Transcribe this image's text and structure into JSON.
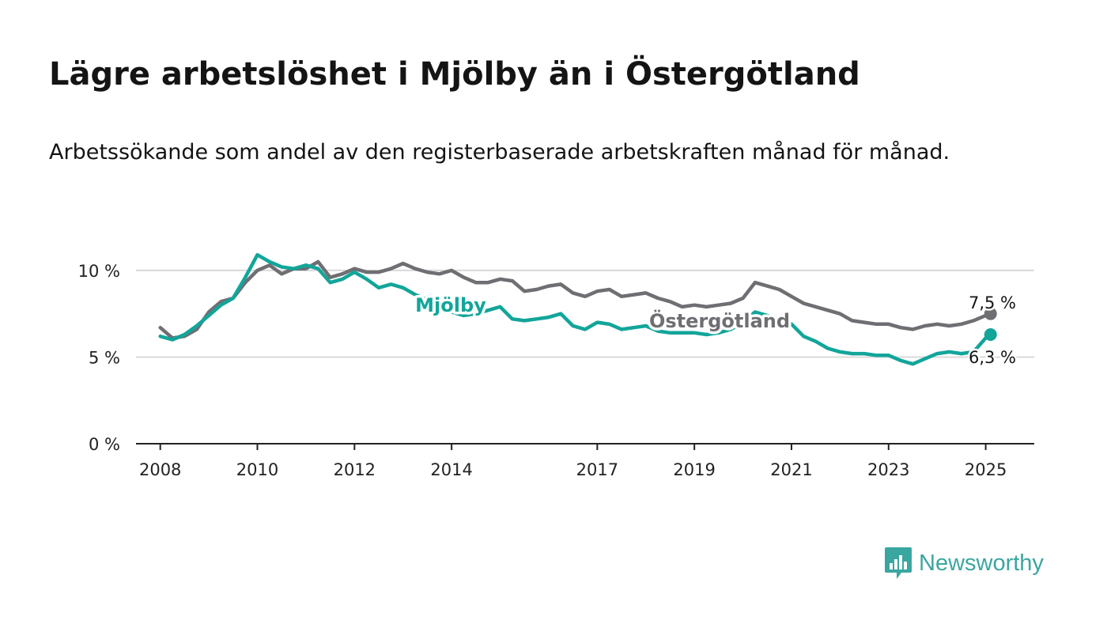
{
  "title": "Lägre arbetslöshet i Mjölby än i Östergötland",
  "subtitle": "Arbetssökande som andel av den registerbaserade arbetskraften månad för månad.",
  "brand": {
    "name": "Newsworthy",
    "icon": "bar-chart-speech-bubble-icon",
    "color": "#3aa6a0"
  },
  "chart_data": {
    "type": "line",
    "title": "Lägre arbetslöshet i Mjölby än i Östergötland",
    "xlabel": "",
    "ylabel": "",
    "x_ticks": [
      "2008",
      "2010",
      "2012",
      "2014",
      "2017",
      "2019",
      "2021",
      "2023",
      "2025"
    ],
    "y_ticks": [
      "0 %",
      "5 %",
      "10 %"
    ],
    "ylim": [
      0,
      11
    ],
    "xlim": [
      2007.5,
      2026.0
    ],
    "grid": true,
    "series": [
      {
        "name": "Östergötland",
        "color": "#6e6e73",
        "end_label": "7,5 %",
        "end_value": 7.5,
        "points": [
          [
            2008.0,
            6.7
          ],
          [
            2008.25,
            6.1
          ],
          [
            2008.5,
            6.2
          ],
          [
            2008.75,
            6.6
          ],
          [
            2009.0,
            7.6
          ],
          [
            2009.25,
            8.2
          ],
          [
            2009.5,
            8.4
          ],
          [
            2009.75,
            9.3
          ],
          [
            2010.0,
            10.0
          ],
          [
            2010.25,
            10.3
          ],
          [
            2010.5,
            9.8
          ],
          [
            2010.75,
            10.1
          ],
          [
            2011.0,
            10.1
          ],
          [
            2011.25,
            10.5
          ],
          [
            2011.5,
            9.6
          ],
          [
            2011.75,
            9.8
          ],
          [
            2012.0,
            10.1
          ],
          [
            2012.25,
            9.9
          ],
          [
            2012.5,
            9.9
          ],
          [
            2012.75,
            10.1
          ],
          [
            2013.0,
            10.4
          ],
          [
            2013.25,
            10.1
          ],
          [
            2013.5,
            9.9
          ],
          [
            2013.75,
            9.8
          ],
          [
            2014.0,
            10.0
          ],
          [
            2014.25,
            9.6
          ],
          [
            2014.5,
            9.3
          ],
          [
            2014.75,
            9.3
          ],
          [
            2015.0,
            9.5
          ],
          [
            2015.25,
            9.4
          ],
          [
            2015.5,
            8.8
          ],
          [
            2015.75,
            8.9
          ],
          [
            2016.0,
            9.1
          ],
          [
            2016.25,
            9.2
          ],
          [
            2016.5,
            8.7
          ],
          [
            2016.75,
            8.5
          ],
          [
            2017.0,
            8.8
          ],
          [
            2017.25,
            8.9
          ],
          [
            2017.5,
            8.5
          ],
          [
            2017.75,
            8.6
          ],
          [
            2018.0,
            8.7
          ],
          [
            2018.25,
            8.4
          ],
          [
            2018.5,
            8.2
          ],
          [
            2018.75,
            7.9
          ],
          [
            2019.0,
            8.0
          ],
          [
            2019.25,
            7.9
          ],
          [
            2019.5,
            8.0
          ],
          [
            2019.75,
            8.1
          ],
          [
            2020.0,
            8.4
          ],
          [
            2020.25,
            9.3
          ],
          [
            2020.5,
            9.1
          ],
          [
            2020.75,
            8.9
          ],
          [
            2021.0,
            8.5
          ],
          [
            2021.25,
            8.1
          ],
          [
            2021.5,
            7.9
          ],
          [
            2021.75,
            7.7
          ],
          [
            2022.0,
            7.5
          ],
          [
            2022.25,
            7.1
          ],
          [
            2022.5,
            7.0
          ],
          [
            2022.75,
            6.9
          ],
          [
            2023.0,
            6.9
          ],
          [
            2023.25,
            6.7
          ],
          [
            2023.5,
            6.6
          ],
          [
            2023.75,
            6.8
          ],
          [
            2024.0,
            6.9
          ],
          [
            2024.25,
            6.8
          ],
          [
            2024.5,
            6.9
          ],
          [
            2024.75,
            7.1
          ],
          [
            2025.0,
            7.4
          ],
          [
            2025.1,
            7.5
          ]
        ]
      },
      {
        "name": "Mjölby",
        "color": "#12a59a",
        "end_label": "6,3 %",
        "end_value": 6.3,
        "points": [
          [
            2008.0,
            6.2
          ],
          [
            2008.25,
            6.0
          ],
          [
            2008.5,
            6.3
          ],
          [
            2008.75,
            6.8
          ],
          [
            2009.0,
            7.4
          ],
          [
            2009.25,
            8.0
          ],
          [
            2009.5,
            8.4
          ],
          [
            2009.75,
            9.6
          ],
          [
            2010.0,
            10.9
          ],
          [
            2010.25,
            10.5
          ],
          [
            2010.5,
            10.2
          ],
          [
            2010.75,
            10.1
          ],
          [
            2011.0,
            10.3
          ],
          [
            2011.25,
            10.1
          ],
          [
            2011.5,
            9.3
          ],
          [
            2011.75,
            9.5
          ],
          [
            2012.0,
            9.9
          ],
          [
            2012.25,
            9.5
          ],
          [
            2012.5,
            9.0
          ],
          [
            2012.75,
            9.2
          ],
          [
            2013.0,
            9.0
          ],
          [
            2013.25,
            8.6
          ],
          [
            2013.5,
            8.3
          ],
          [
            2013.75,
            7.9
          ],
          [
            2014.0,
            7.6
          ],
          [
            2014.25,
            7.4
          ],
          [
            2014.5,
            7.5
          ],
          [
            2014.75,
            7.7
          ],
          [
            2015.0,
            7.9
          ],
          [
            2015.25,
            7.2
          ],
          [
            2015.5,
            7.1
          ],
          [
            2015.75,
            7.2
          ],
          [
            2016.0,
            7.3
          ],
          [
            2016.25,
            7.5
          ],
          [
            2016.5,
            6.8
          ],
          [
            2016.75,
            6.6
          ],
          [
            2017.0,
            7.0
          ],
          [
            2017.25,
            6.9
          ],
          [
            2017.5,
            6.6
          ],
          [
            2017.75,
            6.7
          ],
          [
            2018.0,
            6.8
          ],
          [
            2018.25,
            6.5
          ],
          [
            2018.5,
            6.4
          ],
          [
            2018.75,
            6.4
          ],
          [
            2019.0,
            6.4
          ],
          [
            2019.25,
            6.3
          ],
          [
            2019.5,
            6.4
          ],
          [
            2019.75,
            6.6
          ],
          [
            2020.0,
            7.0
          ],
          [
            2020.25,
            7.6
          ],
          [
            2020.5,
            7.4
          ],
          [
            2020.75,
            7.2
          ],
          [
            2021.0,
            6.9
          ],
          [
            2021.25,
            6.2
          ],
          [
            2021.5,
            5.9
          ],
          [
            2021.75,
            5.5
          ],
          [
            2022.0,
            5.3
          ],
          [
            2022.25,
            5.2
          ],
          [
            2022.5,
            5.2
          ],
          [
            2022.75,
            5.1
          ],
          [
            2023.0,
            5.1
          ],
          [
            2023.25,
            4.8
          ],
          [
            2023.5,
            4.6
          ],
          [
            2023.75,
            4.9
          ],
          [
            2024.0,
            5.2
          ],
          [
            2024.25,
            5.3
          ],
          [
            2024.5,
            5.2
          ],
          [
            2024.75,
            5.3
          ],
          [
            2025.0,
            6.1
          ],
          [
            2025.1,
            6.3
          ]
        ]
      }
    ]
  }
}
